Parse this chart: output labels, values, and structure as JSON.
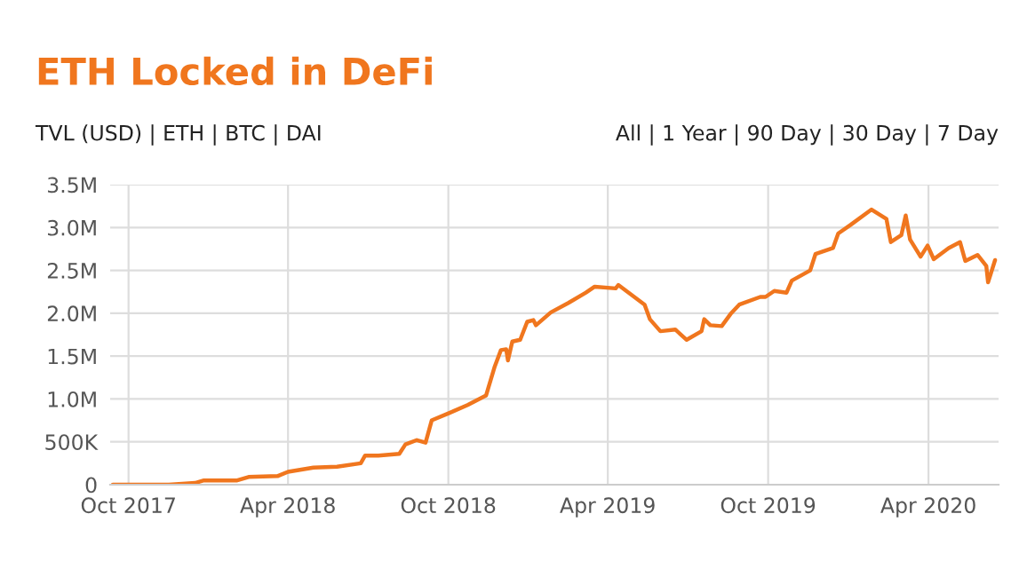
{
  "chart_data": {
    "type": "line",
    "title": "ETH Locked in DeFi",
    "annotations": [
      "TVL (USD) | ETH | BTC | DAI",
      "All | 1 Year | 90 Day | 30 Day | 7 Day"
    ],
    "x": [
      "2017-09-13",
      "2017-11-16",
      "2017-12-16",
      "2017-12-26",
      "2018-02-02",
      "2018-02-15",
      "2018-03-20",
      "2018-04-01",
      "2018-04-30",
      "2018-05-27",
      "2018-06-23",
      "2018-06-28",
      "2018-07-13",
      "2018-08-06",
      "2018-08-13",
      "2018-08-26",
      "2018-09-05",
      "2018-09-12",
      "2018-10-03",
      "2018-10-23",
      "2018-11-13",
      "2018-11-23",
      "2018-11-30",
      "2018-12-06",
      "2018-12-08",
      "2018-12-13",
      "2018-12-22",
      "2018-12-30",
      "2019-01-06",
      "2019-01-09",
      "2019-01-26",
      "2019-02-15",
      "2019-03-07",
      "2019-03-17",
      "2019-04-10",
      "2019-04-13",
      "2019-05-13",
      "2019-05-19",
      "2019-05-31",
      "2019-06-17",
      "2019-06-30",
      "2019-07-17",
      "2019-07-20",
      "2019-07-27",
      "2019-08-09",
      "2019-08-19",
      "2019-08-29",
      "2019-09-22",
      "2019-09-28",
      "2019-10-08",
      "2019-10-22",
      "2019-10-28",
      "2019-11-18",
      "2019-11-24",
      "2019-12-14",
      "2019-12-20",
      "2020-01-03",
      "2020-01-27",
      "2020-02-13",
      "2020-02-18",
      "2020-03-01",
      "2020-03-06",
      "2020-03-11",
      "2020-03-23",
      "2020-03-31",
      "2020-04-07",
      "2020-04-24",
      "2020-05-07",
      "2020-05-13",
      "2020-05-27",
      "2020-06-06",
      "2020-06-08",
      "2020-06-16"
    ],
    "series": [
      {
        "color": "#f0761e",
        "values": [
          0,
          0,
          20000,
          50000,
          50000,
          90000,
          100000,
          150000,
          200000,
          210000,
          250000,
          340000,
          340000,
          360000,
          470000,
          520000,
          490000,
          750000,
          840000,
          930000,
          1040000,
          1380000,
          1570000,
          1580000,
          1450000,
          1670000,
          1690000,
          1900000,
          1920000,
          1860000,
          2010000,
          2120000,
          2240000,
          2310000,
          2290000,
          2330000,
          2100000,
          1930000,
          1790000,
          1810000,
          1690000,
          1790000,
          1930000,
          1860000,
          1850000,
          1990000,
          2100000,
          2190000,
          2190000,
          2260000,
          2240000,
          2380000,
          2500000,
          2690000,
          2760000,
          2930000,
          3030000,
          3210000,
          3100000,
          2830000,
          2910000,
          3140000,
          2860000,
          2660000,
          2790000,
          2630000,
          2760000,
          2830000,
          2610000,
          2680000,
          2550000,
          2360000,
          2620000
        ]
      }
    ],
    "xlim": [
      "2017-09-10",
      "2020-06-20"
    ],
    "xticks": [
      {
        "value": "2017-10-01",
        "label": "Oct 2017"
      },
      {
        "value": "2018-04-01",
        "label": "Apr 2018"
      },
      {
        "value": "2018-10-01",
        "label": "Oct 2018"
      },
      {
        "value": "2019-04-01",
        "label": "Apr 2019"
      },
      {
        "value": "2019-10-01",
        "label": "Oct 2019"
      },
      {
        "value": "2020-04-01",
        "label": "Apr 2020"
      }
    ],
    "ylim": [
      0,
      3500000
    ],
    "yticks": [
      0,
      {
        "value": 500000,
        "label": "500K"
      },
      {
        "value": 1000000,
        "label": "1.0M"
      },
      {
        "value": 1500000,
        "label": "1.5M"
      },
      {
        "value": 2000000,
        "label": "2.0M"
      },
      {
        "value": 2500000,
        "label": "2.5M"
      },
      {
        "value": 3000000,
        "label": "3.0M"
      },
      {
        "value": 3500000,
        "label": "3.5M"
      }
    ],
    "grid": true,
    "marker": "none",
    "line_style": "solid"
  }
}
